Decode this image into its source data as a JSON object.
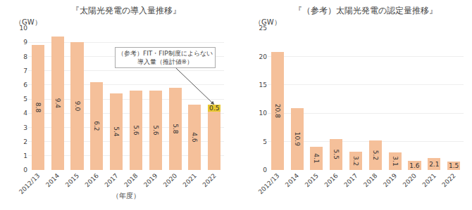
{
  "chart_data": [
    {
      "type": "bar",
      "stacked": true,
      "title": "『太陽光発電の導入量推移』",
      "xlabel": "（年度）",
      "ylabel": "（GW）",
      "categories": [
        "2012/13",
        "2014",
        "2015",
        "2016",
        "2017",
        "2018",
        "2019",
        "2020",
        "2021",
        "2022"
      ],
      "series": [
        {
          "color": "#F5C09A",
          "values": [
            8.8,
            9.4,
            9.0,
            6.2,
            5.4,
            5.6,
            5.6,
            5.8,
            4.6,
            4.1
          ],
          "value_labels": [
            "8.8",
            "9.4",
            "9.0",
            "6.2",
            "5.4",
            "5.6",
            "5.6",
            "5.8",
            "4.6",
            null
          ]
        },
        {
          "color": "#E8C830",
          "values": [
            null,
            null,
            null,
            null,
            null,
            null,
            null,
            null,
            null,
            0.5
          ],
          "value_labels": [
            null,
            null,
            null,
            null,
            null,
            null,
            null,
            null,
            null,
            "0.5"
          ]
        }
      ],
      "ylim": [
        0,
        10
      ],
      "yticks": [
        0,
        1,
        2,
        3,
        4,
        5,
        6,
        7,
        8,
        9,
        10
      ],
      "grid": true,
      "data_labels": true,
      "annotations": [
        {
          "text": "（参考）FIT・FIP制度によらない\n導入量（推計値※）",
          "category": "2022"
        }
      ]
    },
    {
      "type": "bar",
      "title": "『（参考）太陽光発電の認定量推移』",
      "ylabel": "（GW）",
      "categories": [
        "2012/13",
        "2014",
        "2015",
        "2016",
        "2017",
        "2018",
        "2019",
        "2020",
        "2021",
        "2022"
      ],
      "values": [
        20.8,
        10.9,
        4.1,
        5.5,
        3.2,
        5.2,
        3.1,
        1.6,
        2.1,
        1.5
      ],
      "color": "#F5C09A",
      "ylim": [
        0,
        25
      ],
      "yticks": [
        0,
        5,
        10,
        15,
        20,
        25
      ],
      "grid": true,
      "data_labels": true
    }
  ]
}
